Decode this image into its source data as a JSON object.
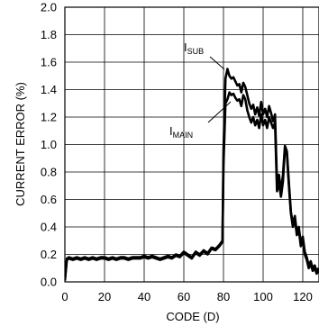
{
  "chart_data": {
    "type": "line",
    "title": "",
    "xlabel": "CODE (D)",
    "ylabel": "CURRENT ERROR (%)",
    "xlim": [
      0,
      128
    ],
    "ylim": [
      0,
      2.0
    ],
    "x_ticks": [
      "0",
      "20",
      "40",
      "60",
      "80",
      "100",
      "120"
    ],
    "y_ticks": [
      "0.0",
      "0.2",
      "0.4",
      "0.6",
      "0.8",
      "1.0",
      "1.2",
      "1.4",
      "1.6",
      "1.8",
      "2.0"
    ],
    "grid": true,
    "annotations": [
      {
        "main": "I",
        "sub": "SUB",
        "series": "sub"
      },
      {
        "main": "I",
        "sub": "MAIN",
        "series": "main"
      }
    ],
    "series": [
      {
        "id": "sub",
        "x": [
          0,
          1,
          2,
          4,
          6,
          8,
          10,
          12,
          14,
          16,
          18,
          20,
          22,
          24,
          26,
          28,
          30,
          32,
          34,
          36,
          38,
          40,
          42,
          44,
          46,
          48,
          50,
          52,
          54,
          56,
          58,
          60,
          62,
          64,
          66,
          68,
          70,
          72,
          74,
          76,
          78,
          79.5,
          80,
          81,
          82,
          83,
          84,
          85,
          86,
          87,
          88,
          89,
          90,
          91,
          92,
          93,
          94,
          95,
          96,
          97,
          98,
          99,
          100,
          101,
          102,
          103,
          104,
          105,
          106,
          107,
          108,
          109,
          110,
          111,
          112,
          113,
          114,
          115,
          116,
          117,
          118,
          119,
          120,
          121,
          122,
          123,
          124,
          125,
          126,
          127,
          128
        ],
        "y": [
          0.01,
          0.17,
          0.18,
          0.17,
          0.18,
          0.17,
          0.18,
          0.17,
          0.18,
          0.17,
          0.18,
          0.18,
          0.17,
          0.18,
          0.17,
          0.18,
          0.18,
          0.17,
          0.18,
          0.18,
          0.18,
          0.19,
          0.18,
          0.19,
          0.18,
          0.17,
          0.18,
          0.19,
          0.18,
          0.2,
          0.19,
          0.22,
          0.2,
          0.18,
          0.22,
          0.2,
          0.23,
          0.21,
          0.25,
          0.24,
          0.27,
          0.3,
          0.95,
          1.48,
          1.55,
          1.5,
          1.48,
          1.49,
          1.46,
          1.43,
          1.44,
          1.38,
          1.45,
          1.42,
          1.36,
          1.3,
          1.26,
          1.29,
          1.22,
          1.27,
          1.21,
          1.31,
          1.22,
          1.26,
          1.2,
          1.28,
          1.23,
          1.17,
          1.22,
          0.72,
          0.78,
          0.66,
          0.78,
          0.99,
          0.95,
          0.72,
          0.51,
          0.42,
          0.48,
          0.36,
          0.4,
          0.28,
          0.33,
          0.22,
          0.18,
          0.12,
          0.15,
          0.1,
          0.12,
          0.08,
          0.1
        ]
      },
      {
        "id": "main",
        "x": [
          0,
          1,
          2,
          4,
          6,
          8,
          10,
          12,
          14,
          16,
          18,
          20,
          22,
          24,
          26,
          28,
          30,
          32,
          34,
          36,
          38,
          40,
          42,
          44,
          46,
          48,
          50,
          52,
          54,
          56,
          58,
          60,
          62,
          64,
          66,
          68,
          70,
          72,
          74,
          76,
          78,
          79.5,
          80,
          81,
          82,
          83,
          84,
          85,
          86,
          87,
          88,
          89,
          90,
          91,
          92,
          93,
          94,
          95,
          96,
          97,
          98,
          99,
          100,
          101,
          102,
          103,
          104,
          105,
          106,
          107,
          108,
          109,
          110,
          111,
          112,
          113,
          114,
          115,
          116,
          117,
          118,
          119,
          120,
          121,
          122,
          123,
          124,
          125,
          126,
          127,
          128
        ],
        "y": [
          0.01,
          0.16,
          0.17,
          0.16,
          0.17,
          0.16,
          0.17,
          0.16,
          0.17,
          0.16,
          0.17,
          0.17,
          0.16,
          0.17,
          0.16,
          0.17,
          0.17,
          0.16,
          0.17,
          0.17,
          0.17,
          0.18,
          0.17,
          0.18,
          0.17,
          0.16,
          0.17,
          0.18,
          0.17,
          0.19,
          0.18,
          0.21,
          0.19,
          0.17,
          0.21,
          0.19,
          0.22,
          0.2,
          0.24,
          0.23,
          0.26,
          0.29,
          0.85,
          1.3,
          1.33,
          1.38,
          1.36,
          1.37,
          1.34,
          1.32,
          1.33,
          1.28,
          1.36,
          1.33,
          1.25,
          1.2,
          1.16,
          1.2,
          1.14,
          1.18,
          1.12,
          1.22,
          1.14,
          1.18,
          1.12,
          1.2,
          1.16,
          1.12,
          1.16,
          0.66,
          0.72,
          0.62,
          0.73,
          0.97,
          0.93,
          0.7,
          0.5,
          0.4,
          0.46,
          0.34,
          0.38,
          0.26,
          0.31,
          0.2,
          0.16,
          0.1,
          0.13,
          0.08,
          0.1,
          0.06,
          0.08
        ]
      }
    ]
  }
}
